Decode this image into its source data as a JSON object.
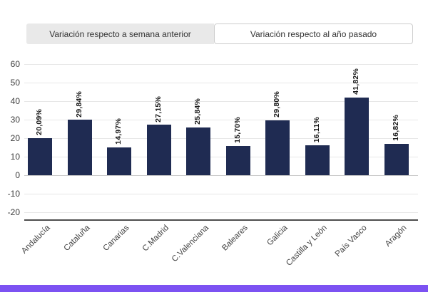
{
  "tabs": {
    "items": [
      {
        "label": "Variación respecto a semana anterior",
        "active": false
      },
      {
        "label": "Variación respecto al año pasado",
        "active": true
      }
    ]
  },
  "chart_data": {
    "type": "bar",
    "title": "",
    "categories": [
      "Andalucía",
      "Cataluña",
      "Canarias",
      "C.Madrid",
      "C.Valenciana",
      "Baleares",
      "Galicia",
      "Castilla y León",
      "País Vasco",
      "Aragón"
    ],
    "values": [
      20.09,
      29.84,
      14.97,
      27.15,
      25.84,
      15.7,
      29.8,
      16.11,
      41.82,
      16.82
    ],
    "value_labels": [
      "20,09%",
      "29,84%",
      "14,97%",
      "27,15%",
      "25,84%",
      "15,70%",
      "29,80%",
      "16,11%",
      "41,82%",
      "16,82%"
    ],
    "yticks": [
      60,
      50,
      40,
      30,
      20,
      10,
      0,
      -10,
      -20
    ],
    "ylim": [
      -24,
      62
    ],
    "xlabel": "",
    "ylabel": "",
    "grid": true,
    "legend": false,
    "bar_color": "#1f2b52",
    "gridline_color": "#e7e7e7",
    "zero_line_color": "#c9c9c9",
    "axis_line_color": "#4d4d4d"
  },
  "footer": {
    "accent_color": "#7c52f2"
  }
}
